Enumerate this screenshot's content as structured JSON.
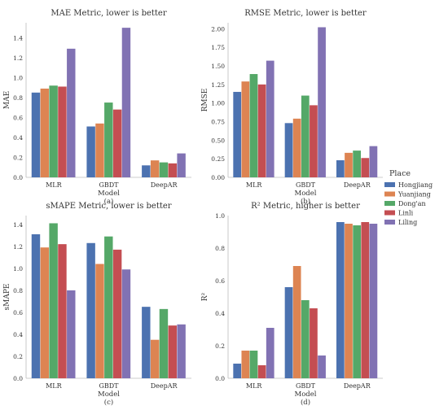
{
  "chart_data": [
    {
      "type": "bar",
      "title": "MAE Metric, lower is better",
      "xlabel": "Model",
      "ylabel": "MAE",
      "caption": "(a)",
      "categories": [
        "MLR",
        "GBDT",
        "DeepAR"
      ],
      "ylim": [
        0,
        1.55
      ],
      "yticks": [
        "0.0",
        "0.2",
        "0.4",
        "0.6",
        "0.8",
        "1.0",
        "1.2",
        "1.4"
      ],
      "series": [
        {
          "name": "Hongjiang",
          "values": [
            0.85,
            0.51,
            0.12
          ]
        },
        {
          "name": "Yuanjiang",
          "values": [
            0.89,
            0.54,
            0.17
          ]
        },
        {
          "name": "Dong'an",
          "values": [
            0.92,
            0.75,
            0.15
          ]
        },
        {
          "name": "Linli",
          "values": [
            0.91,
            0.68,
            0.14
          ]
        },
        {
          "name": "Liling",
          "values": [
            1.29,
            1.5,
            0.24
          ]
        }
      ]
    },
    {
      "type": "bar",
      "title": "RMSE Metric, lower is better",
      "xlabel": "Model",
      "ylabel": "RMSE",
      "caption": "(b)",
      "categories": [
        "MLR",
        "GBDT",
        "DeepAR"
      ],
      "ylim": [
        0,
        2.08
      ],
      "yticks": [
        "0.00",
        "0.25",
        "0.50",
        "0.75",
        "1.00",
        "1.25",
        "1.50",
        "1.75",
        "2.00"
      ],
      "series": [
        {
          "name": "Hongjiang",
          "values": [
            1.15,
            0.73,
            0.23
          ]
        },
        {
          "name": "Yuanjiang",
          "values": [
            1.29,
            0.79,
            0.33
          ]
        },
        {
          "name": "Dong'an",
          "values": [
            1.39,
            1.1,
            0.36
          ]
        },
        {
          "name": "Linli",
          "values": [
            1.25,
            0.97,
            0.26
          ]
        },
        {
          "name": "Liling",
          "values": [
            1.57,
            2.02,
            0.42
          ]
        }
      ]
    },
    {
      "type": "bar",
      "title": "sMAPE Metric, lower is better",
      "xlabel": "Model",
      "ylabel": "sMAPE",
      "caption": "(c)",
      "categories": [
        "MLR",
        "GBDT",
        "DeepAR"
      ],
      "ylim": [
        0,
        1.48
      ],
      "yticks": [
        "0.0",
        "0.2",
        "0.4",
        "0.6",
        "0.8",
        "1.0",
        "1.2",
        "1.4"
      ],
      "series": [
        {
          "name": "Hongjiang",
          "values": [
            1.31,
            1.23,
            0.65
          ]
        },
        {
          "name": "Yuanjiang",
          "values": [
            1.19,
            1.04,
            0.35
          ]
        },
        {
          "name": "Dong'an",
          "values": [
            1.41,
            1.29,
            0.63
          ]
        },
        {
          "name": "Linli",
          "values": [
            1.22,
            1.17,
            0.48
          ]
        },
        {
          "name": "Liling",
          "values": [
            0.8,
            0.99,
            0.49
          ]
        }
      ]
    },
    {
      "type": "bar",
      "title": "R² Metric, higher is better",
      "xlabel": "Model",
      "ylabel": "R²",
      "caption": "(d)",
      "categories": [
        "MLR",
        "GBDT",
        "DeepAR"
      ],
      "ylim": [
        0,
        1.0
      ],
      "yticks": [
        "0.0",
        "0.2",
        "0.4",
        "0.6",
        "0.8",
        "1.0"
      ],
      "series": [
        {
          "name": "Hongjiang",
          "values": [
            0.09,
            0.56,
            0.96
          ]
        },
        {
          "name": "Yuanjiang",
          "values": [
            0.17,
            0.69,
            0.95
          ]
        },
        {
          "name": "Dong'an",
          "values": [
            0.17,
            0.48,
            0.94
          ]
        },
        {
          "name": "Linli",
          "values": [
            0.08,
            0.43,
            0.96
          ]
        },
        {
          "name": "Liling",
          "values": [
            0.31,
            0.14,
            0.95
          ]
        }
      ]
    }
  ],
  "legend": {
    "title": "Place",
    "placement": "right",
    "items": [
      {
        "name": "Hongjiang",
        "color": "#4c72b0"
      },
      {
        "name": "Yuanjiang",
        "color": "#dd8452"
      },
      {
        "name": "Dong'an",
        "color": "#55a868"
      },
      {
        "name": "Linli",
        "color": "#c44e52"
      },
      {
        "name": "Liling",
        "color": "#8172b3"
      }
    ]
  }
}
